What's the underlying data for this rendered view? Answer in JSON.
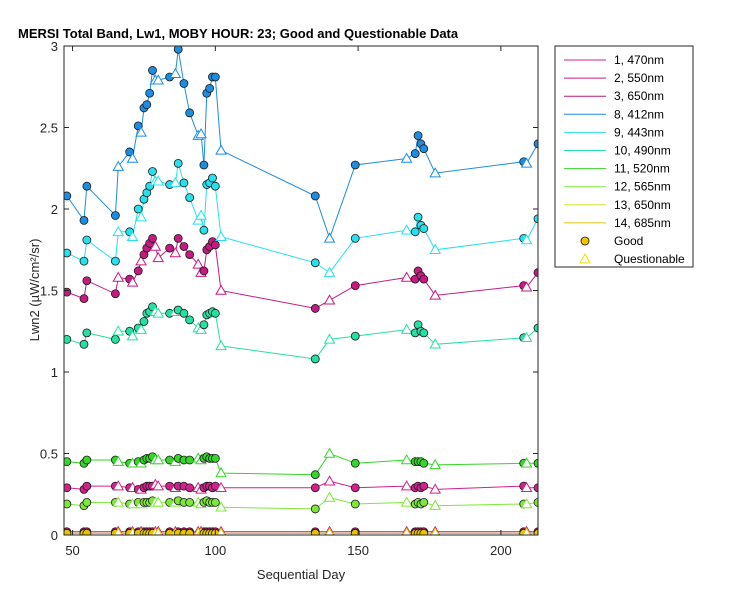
{
  "chart_data": {
    "type": "line",
    "title": "MERSI Total Band, Lw1, MOBY HOUR: 23;  Good and Questionable Data",
    "xlabel": "Sequential Day",
    "ylabel": "Lwn2 (µW/cm²/sr)",
    "xlim": [
      47,
      213
    ],
    "ylim": [
      0,
      3
    ],
    "xticks": [
      50,
      100,
      150,
      200
    ],
    "yticks": [
      0,
      0.5,
      1,
      1.5,
      2,
      2.5,
      3
    ],
    "ytick_labels": [
      "0",
      "0.5",
      "1",
      "1.5",
      "2",
      "2.5",
      "3"
    ],
    "grid": false,
    "legend_position": "outside-top-right",
    "x": [
      48,
      54,
      55,
      65,
      66,
      70,
      71,
      73,
      74,
      75,
      76,
      77,
      78,
      79,
      80,
      84,
      86,
      87,
      89,
      91,
      94,
      95,
      96,
      97,
      98,
      99,
      100,
      102,
      135,
      140,
      149,
      167,
      170,
      171,
      172,
      173,
      177,
      208,
      209,
      213
    ],
    "quality": [
      "G",
      "G",
      "G",
      "G",
      "Q",
      "G",
      "Q",
      "G",
      "Q",
      "G",
      "G",
      "G",
      "G",
      "Q",
      "Q",
      "G",
      "Q",
      "G",
      "G",
      "G",
      "Q",
      "Q",
      "G",
      "G",
      "G",
      "G",
      "G",
      "Q",
      "G",
      "Q",
      "G",
      "Q",
      "G",
      "G",
      "G",
      "G",
      "Q",
      "G",
      "Q",
      "G"
    ],
    "series": [
      {
        "name": "1, 470nm",
        "color": "#d0218c",
        "values": [
          0.29,
          0.28,
          0.3,
          0.3,
          0.3,
          0.29,
          0.29,
          0.28,
          0.28,
          0.29,
          0.3,
          0.3,
          0.3,
          0.31,
          0.3,
          0.3,
          0.29,
          0.3,
          0.3,
          0.29,
          0.29,
          0.28,
          0.29,
          0.3,
          0.3,
          0.29,
          0.3,
          0.29,
          0.29,
          0.33,
          0.29,
          0.3,
          0.29,
          0.3,
          0.29,
          0.3,
          0.28,
          0.3,
          0.29,
          0.29
        ]
      },
      {
        "name": "2, 550nm",
        "color": "#c61a83",
        "values": [
          1.49,
          1.45,
          1.56,
          1.48,
          1.58,
          1.57,
          1.55,
          1.62,
          1.68,
          1.72,
          1.76,
          1.79,
          1.82,
          1.77,
          1.7,
          1.76,
          1.73,
          1.82,
          1.77,
          1.72,
          1.66,
          1.61,
          1.62,
          1.75,
          1.77,
          1.8,
          1.78,
          1.5,
          1.39,
          1.44,
          1.53,
          1.58,
          1.57,
          1.62,
          1.59,
          1.57,
          1.47,
          1.53,
          1.52,
          1.61
        ]
      },
      {
        "name": "3, 650nm",
        "color": "#b81879",
        "values": [
          0.02,
          0.02,
          0.02,
          0.02,
          0.02,
          0.02,
          0.02,
          0.02,
          0.02,
          0.02,
          0.02,
          0.02,
          0.02,
          0.02,
          0.02,
          0.02,
          0.02,
          0.02,
          0.02,
          0.02,
          0.02,
          0.02,
          0.02,
          0.02,
          0.02,
          0.02,
          0.02,
          0.02,
          0.02,
          0.02,
          0.02,
          0.02,
          0.02,
          0.02,
          0.02,
          0.02,
          0.02,
          0.02,
          0.02,
          0.02
        ]
      },
      {
        "name": "8, 412nm",
        "color": "#1c8de0",
        "values": [
          2.08,
          1.93,
          2.14,
          1.96,
          2.26,
          2.35,
          2.31,
          2.51,
          2.47,
          2.62,
          2.64,
          2.71,
          2.85,
          2.79,
          2.79,
          2.81,
          2.83,
          2.98,
          2.77,
          2.59,
          2.45,
          2.46,
          2.27,
          2.71,
          2.74,
          2.81,
          2.81,
          2.36,
          2.08,
          1.82,
          2.27,
          2.31,
          2.34,
          2.45,
          2.4,
          2.37,
          2.22,
          2.29,
          2.28,
          2.4
        ]
      },
      {
        "name": "9, 443nm",
        "color": "#26e0ee",
        "values": [
          1.73,
          1.68,
          1.81,
          1.68,
          1.86,
          1.86,
          1.83,
          2.0,
          1.95,
          2.06,
          2.1,
          2.14,
          2.23,
          2.17,
          2.17,
          2.15,
          2.16,
          2.28,
          2.16,
          2.07,
          1.93,
          1.96,
          1.87,
          2.15,
          2.16,
          2.19,
          2.14,
          1.83,
          1.67,
          1.61,
          1.82,
          1.87,
          1.86,
          1.95,
          1.9,
          1.88,
          1.75,
          1.82,
          1.81,
          1.94
        ]
      },
      {
        "name": "10, 490nm",
        "color": "#26e0a3",
        "values": [
          1.2,
          1.17,
          1.24,
          1.2,
          1.25,
          1.25,
          1.22,
          1.27,
          1.26,
          1.31,
          1.36,
          1.37,
          1.4,
          1.37,
          1.36,
          1.36,
          1.37,
          1.38,
          1.36,
          1.32,
          1.27,
          1.26,
          1.29,
          1.35,
          1.36,
          1.37,
          1.36,
          1.16,
          1.08,
          1.2,
          1.22,
          1.26,
          1.24,
          1.29,
          1.25,
          1.24,
          1.17,
          1.21,
          1.21,
          1.27
        ]
      },
      {
        "name": "11, 520nm",
        "color": "#35d52a",
        "values": [
          0.45,
          0.44,
          0.46,
          0.46,
          0.45,
          0.44,
          0.44,
          0.45,
          0.44,
          0.46,
          0.47,
          0.47,
          0.48,
          0.46,
          0.46,
          0.46,
          0.45,
          0.47,
          0.46,
          0.46,
          0.47,
          0.46,
          0.47,
          0.48,
          0.47,
          0.47,
          0.47,
          0.38,
          0.37,
          0.5,
          0.44,
          0.46,
          0.45,
          0.45,
          0.45,
          0.44,
          0.43,
          0.44,
          0.44,
          0.44
        ]
      },
      {
        "name": "12, 565nm",
        "color": "#7ee83a",
        "values": [
          0.19,
          0.18,
          0.2,
          0.2,
          0.2,
          0.19,
          0.19,
          0.2,
          0.19,
          0.2,
          0.2,
          0.2,
          0.21,
          0.2,
          0.2,
          0.2,
          0.2,
          0.21,
          0.2,
          0.2,
          0.2,
          0.19,
          0.2,
          0.21,
          0.2,
          0.2,
          0.2,
          0.17,
          0.16,
          0.23,
          0.19,
          0.2,
          0.19,
          0.2,
          0.19,
          0.2,
          0.18,
          0.19,
          0.19,
          0.2
        ]
      },
      {
        "name": "13, 650nm",
        "color": "#d4e22a",
        "values": [
          0.01,
          0.01,
          0.01,
          0.01,
          0.01,
          0.01,
          0.01,
          0.01,
          0.01,
          0.01,
          0.01,
          0.01,
          0.01,
          0.01,
          0.01,
          0.01,
          0.01,
          0.01,
          0.01,
          0.01,
          0.01,
          0.01,
          0.01,
          0.01,
          0.01,
          0.01,
          0.01,
          0.01,
          0.01,
          0.01,
          0.01,
          0.01,
          0.01,
          0.01,
          0.01,
          0.01,
          0.01,
          0.01,
          0.01,
          0.01
        ]
      },
      {
        "name": "14, 685nm",
        "color": "#e8c400",
        "values": [
          0.01,
          0.01,
          0.01,
          0.01,
          0.01,
          0.01,
          0.01,
          0.01,
          0.01,
          0.01,
          0.01,
          0.01,
          0.01,
          0.01,
          0.01,
          0.01,
          0.01,
          0.01,
          0.01,
          0.01,
          0.01,
          0.01,
          0.01,
          0.01,
          0.01,
          0.01,
          0.01,
          0.01,
          0.01,
          0.01,
          0.01,
          0.01,
          0.01,
          0.01,
          0.01,
          0.01,
          0.01,
          0.01,
          0.01,
          0.01
        ]
      }
    ],
    "markers": [
      {
        "name": "Good",
        "shape": "circle",
        "color": "#f5c400"
      },
      {
        "name": "Questionable",
        "shape": "triangle",
        "color": "#f5e000"
      }
    ]
  }
}
